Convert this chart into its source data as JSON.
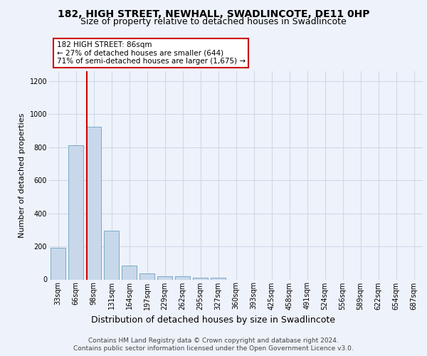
{
  "title1": "182, HIGH STREET, NEWHALL, SWADLINCOTE, DE11 0HP",
  "title2": "Size of property relative to detached houses in Swadlincote",
  "xlabel": "Distribution of detached houses by size in Swadlincote",
  "ylabel": "Number of detached properties",
  "footer1": "Contains HM Land Registry data © Crown copyright and database right 2024.",
  "footer2": "Contains public sector information licensed under the Open Government Licence v3.0.",
  "categories": [
    "33sqm",
    "66sqm",
    "98sqm",
    "131sqm",
    "164sqm",
    "197sqm",
    "229sqm",
    "262sqm",
    "295sqm",
    "327sqm",
    "360sqm",
    "393sqm",
    "425sqm",
    "458sqm",
    "491sqm",
    "524sqm",
    "556sqm",
    "589sqm",
    "622sqm",
    "654sqm",
    "687sqm"
  ],
  "values": [
    193,
    810,
    925,
    295,
    85,
    35,
    18,
    18,
    10,
    10,
    0,
    0,
    0,
    0,
    0,
    0,
    0,
    0,
    0,
    0,
    0
  ],
  "bar_color": "#c8d8ea",
  "bar_edge_color": "#7aaac8",
  "vline_color": "#cc0000",
  "annotation_text": "182 HIGH STREET: 86sqm\n← 27% of detached houses are smaller (644)\n71% of semi-detached houses are larger (1,675) →",
  "annotation_box_color": "#ffffff",
  "annotation_box_edge": "#cc0000",
  "ylim": [
    0,
    1260
  ],
  "yticks": [
    0,
    200,
    400,
    600,
    800,
    1000,
    1200
  ],
  "background_color": "#eef2fa",
  "plot_bg_color": "#eef2fa",
  "grid_color": "#d0d8e8",
  "title1_fontsize": 10,
  "title2_fontsize": 9,
  "xlabel_fontsize": 9,
  "ylabel_fontsize": 8,
  "tick_fontsize": 7,
  "footer_fontsize": 6.5,
  "annot_fontsize": 7.5
}
